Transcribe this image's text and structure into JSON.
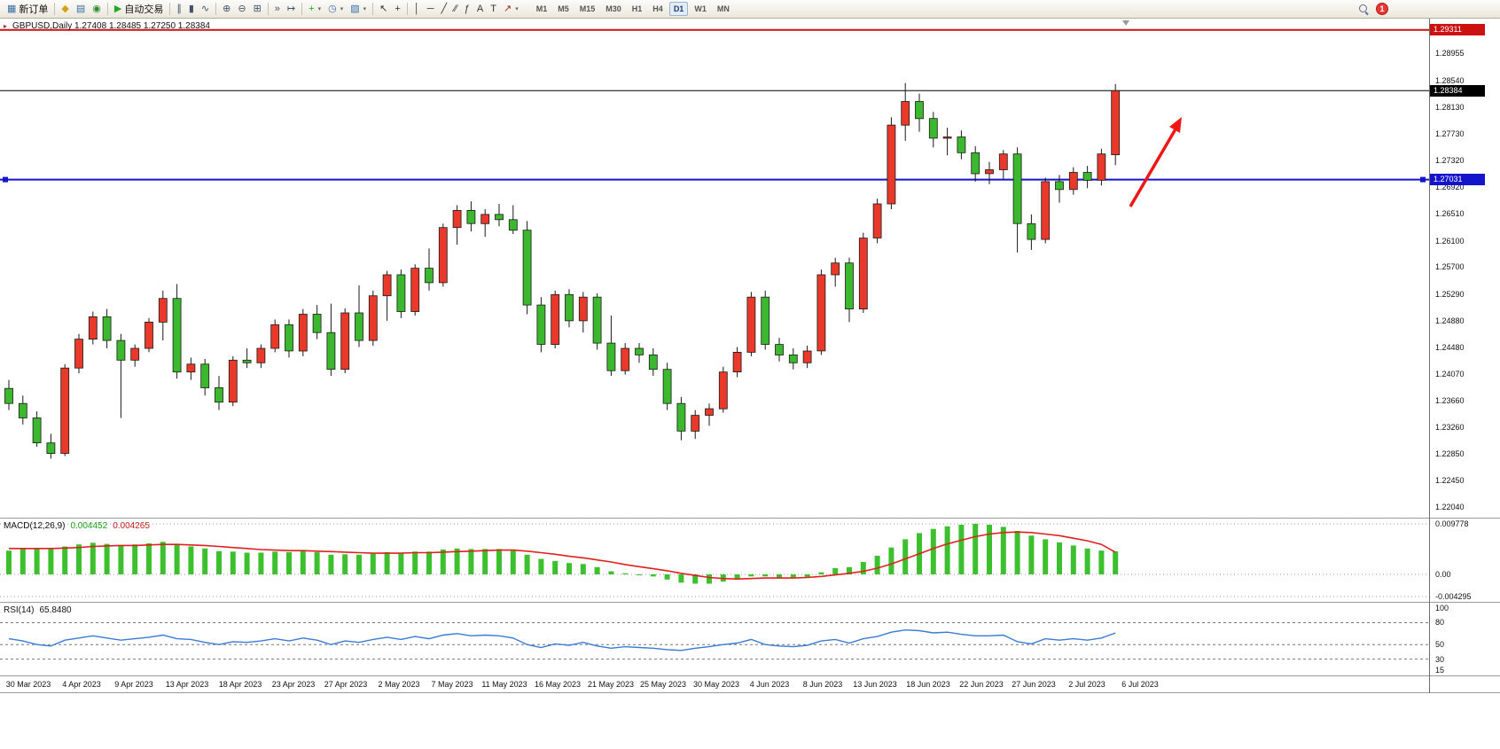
{
  "toolbar": {
    "groups": [
      {
        "items": [
          {
            "name": "new-order-button",
            "glyph": "▦",
            "color": "#3a6ea5",
            "label": "新订单"
          }
        ]
      },
      {
        "items": [
          {
            "name": "market-watch-button",
            "glyph": "◆",
            "color": "#d4a017"
          },
          {
            "name": "data-window-button",
            "glyph": "▤",
            "color": "#3a6ea5"
          },
          {
            "name": "navigator-button",
            "glyph": "◉",
            "color": "#2e8b2e"
          }
        ]
      },
      {
        "items": [
          {
            "name": "autotrading-button",
            "glyph": "▶",
            "color": "#1faa1f",
            "label": "自动交易"
          }
        ]
      },
      {
        "items": [
          {
            "name": "bar-chart-button",
            "glyph": "∥",
            "color": "#44506a"
          },
          {
            "name": "candlestick-chart-button",
            "glyph": "▮",
            "color": "#44506a"
          },
          {
            "name": "line-chart-button",
            "glyph": "∿",
            "color": "#44506a"
          }
        ]
      },
      {
        "items": [
          {
            "name": "zoom-in-button",
            "glyph": "⊕",
            "color": "#44506a"
          },
          {
            "name": "zoom-out-button",
            "glyph": "⊖",
            "color": "#44506a"
          },
          {
            "name": "tile-windows-button",
            "glyph": "⊞",
            "color": "#44506a"
          }
        ]
      },
      {
        "items": [
          {
            "name": "auto-scroll-button",
            "glyph": "»",
            "color": "#44506a"
          },
          {
            "name": "chart-shift-button",
            "glyph": "↦",
            "color": "#44506a"
          }
        ]
      },
      {
        "items": [
          {
            "name": "indicators-button",
            "glyph": "+",
            "color": "#1faa1f",
            "dropdown": true
          },
          {
            "name": "periods-button",
            "glyph": "◷",
            "color": "#3a6ea5",
            "dropdown": true
          },
          {
            "name": "templates-button",
            "glyph": "▧",
            "color": "#3a6ea5",
            "dropdown": true
          }
        ]
      },
      {
        "items": [
          {
            "name": "cursor-button",
            "glyph": "↖",
            "color": "#333333"
          },
          {
            "name": "crosshair-button",
            "glyph": "+",
            "color": "#333333"
          }
        ]
      },
      {
        "items": [
          {
            "name": "vertical-line-button",
            "glyph": "│",
            "color": "#333333"
          },
          {
            "name": "horizontal-line-button",
            "glyph": "─",
            "color": "#333333"
          },
          {
            "name": "trendline-button",
            "glyph": "╱",
            "color": "#333333"
          },
          {
            "name": "channel-button",
            "glyph": "∕∕",
            "color": "#333333"
          },
          {
            "name": "fibonacci-button",
            "glyph": "ƒ",
            "color": "#333333"
          },
          {
            "name": "text-button",
            "glyph": "A",
            "color": "#333333"
          },
          {
            "name": "label-button",
            "glyph": "T",
            "color": "#333333"
          },
          {
            "name": "arrows-button",
            "glyph": "↗",
            "color": "#aa2222",
            "dropdown": true
          }
        ]
      }
    ],
    "timeframes": [
      "M1",
      "M5",
      "M15",
      "M30",
      "H1",
      "H4",
      "D1",
      "W1",
      "MN"
    ],
    "active_timeframe": "D1",
    "notification_count": "1"
  },
  "chart": {
    "one_click_glyph": "▸",
    "info_line": "GBPUSD,Daily 1.27408 1.28485 1.27250 1.28384",
    "price_labels": [
      "1.28955",
      "1.28540",
      "1.28130",
      "1.27730",
      "1.27320",
      "1.26920",
      "1.26510",
      "1.26100",
      "1.25700",
      "1.25290",
      "1.24880",
      "1.24480",
      "1.24070",
      "1.23660",
      "1.23260",
      "1.22850",
      "1.22450",
      "1.22040"
    ],
    "level_lines": [
      {
        "name": "upper-resistance-line",
        "price": 1.29311,
        "label": "1.29311",
        "color": "#cc1111",
        "width": 2
      },
      {
        "name": "current-price-line",
        "price": 1.28384,
        "label": "1.28384",
        "color": "#000000",
        "width": 1
      },
      {
        "name": "support-line",
        "price": 1.27031,
        "label": "1.27031",
        "color": "#1414cc",
        "width": 2
      }
    ],
    "date_labels": [
      "30 Mar 2023",
      "4 Apr 2023",
      "9 Apr 2023",
      "13 Apr 2023",
      "18 Apr 2023",
      "23 Apr 2023",
      "27 Apr 2023",
      "2 May 2023",
      "7 May 2023",
      "11 May 2023",
      "16 May 2023",
      "21 May 2023",
      "25 May 2023",
      "30 May 2023",
      "4 Jun 2023",
      "8 Jun 2023",
      "13 Jun 2023",
      "18 Jun 2023",
      "22 Jun 2023",
      "27 Jun 2023",
      "2 Jul 2023",
      "6 Jul 2023"
    ]
  },
  "macd_panel": {
    "label": "MACD(12,26,9)",
    "value_main": "0.004452",
    "value_signal": "0.004265",
    "axis_labels": [
      "0.009778",
      "0.00",
      "-0.004295"
    ]
  },
  "rsi_panel": {
    "label": "RSI(14)",
    "value": "65.8480",
    "axis_labels": [
      "100",
      "80",
      "50",
      "30",
      "15"
    ],
    "levels": [
      80,
      50,
      30
    ]
  },
  "chart_data": {
    "type": "candlestick",
    "symbol": "GBPUSD",
    "timeframe": "Daily",
    "current_bar": {
      "open": 1.27408,
      "high": 1.28485,
      "low": 1.2725,
      "close": 1.28384
    },
    "color_convention": "red-bullish-green-bearish",
    "colors": {
      "bull": "#e8392b",
      "bear": "#3bb82e",
      "wick": "#1a1a1a",
      "macd_histogram": "#3cc02e",
      "macd_signal": "#e02020",
      "rsi_line": "#3a7bd5"
    },
    "y_axis": {
      "min": 1.2204,
      "max": 1.28955
    },
    "x_tick_labels": [
      "30 Mar 2023",
      "4 Apr 2023",
      "9 Apr 2023",
      "13 Apr 2023",
      "18 Apr 2023",
      "23 Apr 2023",
      "27 Apr 2023",
      "2 May 2023",
      "7 May 2023",
      "11 May 2023",
      "16 May 2023",
      "21 May 2023",
      "25 May 2023",
      "30 May 2023",
      "4 Jun 2023",
      "8 Jun 2023",
      "13 Jun 2023",
      "18 Jun 2023",
      "22 Jun 2023",
      "27 Jun 2023",
      "2 Jul 2023",
      "6 Jul 2023"
    ],
    "candles": [
      [
        1.2385,
        1.2398,
        1.2352,
        1.2362
      ],
      [
        1.2362,
        1.2374,
        1.233,
        1.234
      ],
      [
        1.234,
        1.235,
        1.2296,
        1.2302
      ],
      [
        1.2302,
        1.2316,
        1.2278,
        1.2286
      ],
      [
        1.2286,
        1.2422,
        1.2282,
        1.2416
      ],
      [
        1.2416,
        1.2468,
        1.2408,
        1.246
      ],
      [
        1.246,
        1.2502,
        1.2452,
        1.2494
      ],
      [
        1.2494,
        1.2506,
        1.2446,
        1.2458
      ],
      [
        1.2458,
        1.2468,
        1.234,
        1.2428
      ],
      [
        1.2428,
        1.2452,
        1.2418,
        1.2446
      ],
      [
        1.2446,
        1.2492,
        1.244,
        1.2486
      ],
      [
        1.2486,
        1.2534,
        1.2458,
        1.2522
      ],
      [
        1.2522,
        1.2544,
        1.24,
        1.241
      ],
      [
        1.241,
        1.2432,
        1.2398,
        1.2422
      ],
      [
        1.2422,
        1.243,
        1.2374,
        1.2386
      ],
      [
        1.2386,
        1.2404,
        1.2352,
        1.2364
      ],
      [
        1.2364,
        1.2434,
        1.2358,
        1.2428
      ],
      [
        1.2428,
        1.2446,
        1.2416,
        1.2424
      ],
      [
        1.2424,
        1.2452,
        1.2416,
        1.2446
      ],
      [
        1.2446,
        1.249,
        1.244,
        1.2482
      ],
      [
        1.2482,
        1.249,
        1.2432,
        1.2442
      ],
      [
        1.2442,
        1.2506,
        1.2434,
        1.2498
      ],
      [
        1.2498,
        1.2512,
        1.246,
        1.247
      ],
      [
        1.247,
        1.2514,
        1.2404,
        1.2414
      ],
      [
        1.2414,
        1.2507,
        1.2408,
        1.25
      ],
      [
        1.25,
        1.2542,
        1.2448,
        1.2458
      ],
      [
        1.2458,
        1.2534,
        1.245,
        1.2526
      ],
      [
        1.2526,
        1.2564,
        1.2488,
        1.2558
      ],
      [
        1.2558,
        1.2566,
        1.2492,
        1.2502
      ],
      [
        1.2502,
        1.2574,
        1.2496,
        1.2568
      ],
      [
        1.2568,
        1.2598,
        1.2534,
        1.2546
      ],
      [
        1.2546,
        1.2636,
        1.254,
        1.263
      ],
      [
        1.263,
        1.2664,
        1.2604,
        1.2656
      ],
      [
        1.2656,
        1.267,
        1.2624,
        1.2636
      ],
      [
        1.2636,
        1.2658,
        1.2616,
        1.265
      ],
      [
        1.265,
        1.2666,
        1.2632,
        1.2642
      ],
      [
        1.2642,
        1.2664,
        1.262,
        1.2626
      ],
      [
        1.2626,
        1.264,
        1.2498,
        1.2512
      ],
      [
        1.2512,
        1.2524,
        1.244,
        1.2452
      ],
      [
        1.2452,
        1.2534,
        1.2446,
        1.2528
      ],
      [
        1.2528,
        1.2536,
        1.2478,
        1.2488
      ],
      [
        1.2488,
        1.2532,
        1.247,
        1.2524
      ],
      [
        1.2524,
        1.253,
        1.2444,
        1.2454
      ],
      [
        1.2454,
        1.2496,
        1.2404,
        1.2412
      ],
      [
        1.2412,
        1.2454,
        1.2406,
        1.2446
      ],
      [
        1.2446,
        1.2454,
        1.2424,
        1.2436
      ],
      [
        1.2436,
        1.2446,
        1.2404,
        1.2414
      ],
      [
        1.2414,
        1.2424,
        1.2352,
        1.2362
      ],
      [
        1.2362,
        1.2372,
        1.2306,
        1.232
      ],
      [
        1.232,
        1.2352,
        1.2308,
        1.2344
      ],
      [
        1.2344,
        1.2362,
        1.2328,
        1.2354
      ],
      [
        1.2354,
        1.2418,
        1.2348,
        1.241
      ],
      [
        1.241,
        1.2448,
        1.2402,
        1.244
      ],
      [
        1.244,
        1.2532,
        1.2434,
        1.2524
      ],
      [
        1.2524,
        1.2534,
        1.2444,
        1.2452
      ],
      [
        1.2452,
        1.2462,
        1.2426,
        1.2436
      ],
      [
        1.2436,
        1.2446,
        1.2414,
        1.2424
      ],
      [
        1.2424,
        1.245,
        1.2416,
        1.2442
      ],
      [
        1.2442,
        1.2566,
        1.2436,
        1.2558
      ],
      [
        1.2558,
        1.2584,
        1.254,
        1.2576
      ],
      [
        1.2576,
        1.2584,
        1.2486,
        1.2506
      ],
      [
        1.2506,
        1.2622,
        1.25,
        1.2614
      ],
      [
        1.2614,
        1.2674,
        1.2606,
        1.2666
      ],
      [
        1.2666,
        1.2798,
        1.2658,
        1.2786
      ],
      [
        1.2786,
        1.285,
        1.2762,
        1.2822
      ],
      [
        1.2822,
        1.2834,
        1.2776,
        1.2796
      ],
      [
        1.2796,
        1.2806,
        1.2752,
        1.2766
      ],
      [
        1.2766,
        1.2782,
        1.274,
        1.2768
      ],
      [
        1.2768,
        1.2778,
        1.2734,
        1.2744
      ],
      [
        1.2744,
        1.2754,
        1.27,
        1.2712
      ],
      [
        1.2712,
        1.273,
        1.2696,
        1.2718
      ],
      [
        1.2718,
        1.2748,
        1.2704,
        1.2742
      ],
      [
        1.2742,
        1.2752,
        1.2592,
        1.2636
      ],
      [
        1.2636,
        1.265,
        1.2596,
        1.2612
      ],
      [
        1.2612,
        1.2706,
        1.2606,
        1.27
      ],
      [
        1.27,
        1.271,
        1.2668,
        1.2688
      ],
      [
        1.2688,
        1.2722,
        1.268,
        1.2714
      ],
      [
        1.2714,
        1.2724,
        1.269,
        1.2702
      ],
      [
        1.2702,
        1.275,
        1.2694,
        1.2742
      ],
      [
        1.27408,
        1.28485,
        1.2725,
        1.28384
      ]
    ],
    "indicators": [
      {
        "type": "macd",
        "params": [
          12,
          26,
          9
        ],
        "current_values": [
          0.004452,
          0.004265
        ],
        "axis_range": [
          -0.004295,
          0.009778
        ],
        "histogram": [
          0.0046,
          0.0049,
          0.0051,
          0.005,
          0.0054,
          0.0058,
          0.0061,
          0.0059,
          0.0057,
          0.0058,
          0.006,
          0.0063,
          0.0058,
          0.0054,
          0.005,
          0.0045,
          0.0044,
          0.0042,
          0.0042,
          0.0044,
          0.0043,
          0.0045,
          0.0043,
          0.0038,
          0.0039,
          0.0038,
          0.004,
          0.0043,
          0.0042,
          0.0044,
          0.0044,
          0.0048,
          0.005,
          0.0049,
          0.0049,
          0.0049,
          0.0046,
          0.0038,
          0.003,
          0.0026,
          0.0022,
          0.002,
          0.0014,
          0.0006,
          0.0002,
          0.0,
          -0.0004,
          -0.001,
          -0.0016,
          -0.0018,
          -0.0018,
          -0.0014,
          -0.001,
          -0.0004,
          -0.0004,
          -0.0006,
          -0.0007,
          -0.0005,
          0.0004,
          0.0012,
          0.0014,
          0.0024,
          0.0036,
          0.0052,
          0.0068,
          0.008,
          0.0088,
          0.0093,
          0.0096,
          0.0098,
          0.0096,
          0.0092,
          0.0084,
          0.0075,
          0.0068,
          0.0062,
          0.0056,
          0.005,
          0.0046,
          0.004452
        ],
        "signal": [
          0.005,
          0.005,
          0.005,
          0.005,
          0.0051,
          0.0052,
          0.0054,
          0.0055,
          0.0056,
          0.0056,
          0.0057,
          0.0058,
          0.0058,
          0.0057,
          0.0056,
          0.0054,
          0.0052,
          0.005,
          0.0048,
          0.0047,
          0.0046,
          0.0046,
          0.0045,
          0.0044,
          0.0043,
          0.0042,
          0.0041,
          0.0041,
          0.0041,
          0.0042,
          0.0042,
          0.0043,
          0.0044,
          0.0045,
          0.0046,
          0.0047,
          0.0047,
          0.0045,
          0.0042,
          0.0039,
          0.0035,
          0.0032,
          0.0028,
          0.0024,
          0.0019,
          0.0015,
          0.0011,
          0.0007,
          0.0002,
          -0.0002,
          -0.0006,
          -0.0008,
          -0.0009,
          -0.0008,
          -0.0007,
          -0.0007,
          -0.0007,
          -0.0006,
          -0.0004,
          -0.0001,
          0.0002,
          0.0006,
          0.0012,
          0.002,
          0.003,
          0.004,
          0.005,
          0.0059,
          0.0066,
          0.0073,
          0.0078,
          0.0081,
          0.0082,
          0.0081,
          0.0078,
          0.0075,
          0.007,
          0.0065,
          0.0058,
          0.004265
        ]
      },
      {
        "type": "rsi",
        "params": [
          14
        ],
        "current_value": 65.848,
        "axis_range": [
          15,
          100
        ],
        "levels": [
          80,
          50,
          30
        ],
        "values": [
          58,
          55,
          50,
          48,
          56,
          59,
          62,
          59,
          56,
          58,
          60,
          63,
          58,
          57,
          53,
          50,
          54,
          53,
          55,
          58,
          55,
          59,
          56,
          50,
          55,
          53,
          57,
          60,
          57,
          61,
          58,
          63,
          65,
          62,
          63,
          62,
          59,
          50,
          46,
          51,
          49,
          53,
          48,
          45,
          47,
          46,
          45,
          43,
          42,
          45,
          47,
          50,
          52,
          57,
          50,
          48,
          47,
          49,
          55,
          57,
          52,
          58,
          61,
          67,
          70,
          69,
          66,
          67,
          64,
          62,
          62,
          63,
          54,
          51,
          58,
          56,
          58,
          56,
          59,
          65.848
        ]
      }
    ],
    "annotations": [
      {
        "type": "hline",
        "price": 1.29311,
        "color": "red"
      },
      {
        "type": "hline",
        "price": 1.28384,
        "color": "black"
      },
      {
        "type": "hline",
        "price": 1.27031,
        "color": "blue"
      },
      {
        "type": "arrow",
        "direction": "up-right",
        "color": "red"
      }
    ]
  }
}
